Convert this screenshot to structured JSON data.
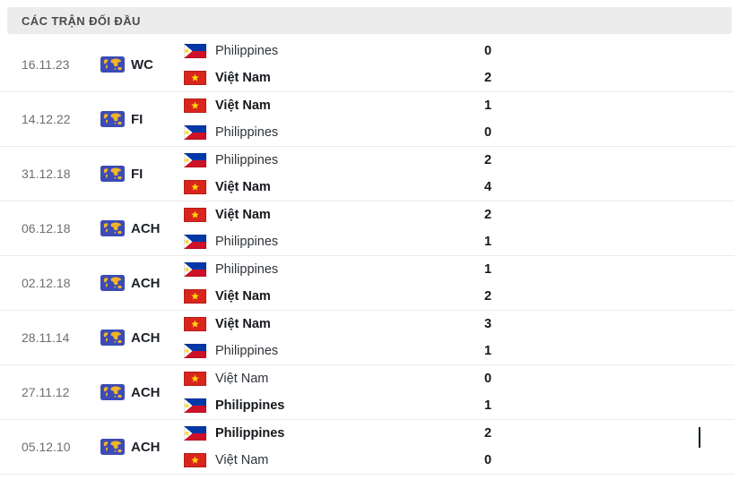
{
  "header": {
    "title": "CÁC TRẬN ĐỐI ĐẦU"
  },
  "colors": {
    "comp_icon_blue": "#3c4bb5",
    "comp_icon_yellow": "#f0b429",
    "vn_red": "#da251d",
    "vn_star": "#ffde00",
    "ph_blue": "#0038a8",
    "ph_red": "#ce1126",
    "ph_sun": "#fcd116"
  },
  "matches": [
    {
      "date": "16.11.23",
      "competition": "WC",
      "team1": {
        "name": "Philippines",
        "flag": "philippines",
        "score": "0",
        "winner": false
      },
      "team2": {
        "name": "Việt Nam",
        "flag": "vietnam",
        "score": "2",
        "winner": true
      }
    },
    {
      "date": "14.12.22",
      "competition": "FI",
      "team1": {
        "name": "Việt Nam",
        "flag": "vietnam",
        "score": "1",
        "winner": true
      },
      "team2": {
        "name": "Philippines",
        "flag": "philippines",
        "score": "0",
        "winner": false
      }
    },
    {
      "date": "31.12.18",
      "competition": "FI",
      "team1": {
        "name": "Philippines",
        "flag": "philippines",
        "score": "2",
        "winner": false
      },
      "team2": {
        "name": "Việt Nam",
        "flag": "vietnam",
        "score": "4",
        "winner": true
      }
    },
    {
      "date": "06.12.18",
      "competition": "ACH",
      "team1": {
        "name": "Việt Nam",
        "flag": "vietnam",
        "score": "2",
        "winner": true
      },
      "team2": {
        "name": "Philippines",
        "flag": "philippines",
        "score": "1",
        "winner": false
      }
    },
    {
      "date": "02.12.18",
      "competition": "ACH",
      "team1": {
        "name": "Philippines",
        "flag": "philippines",
        "score": "1",
        "winner": false
      },
      "team2": {
        "name": "Việt Nam",
        "flag": "vietnam",
        "score": "2",
        "winner": true
      }
    },
    {
      "date": "28.11.14",
      "competition": "ACH",
      "team1": {
        "name": "Việt Nam",
        "flag": "vietnam",
        "score": "3",
        "winner": true
      },
      "team2": {
        "name": "Philippines",
        "flag": "philippines",
        "score": "1",
        "winner": false
      }
    },
    {
      "date": "27.11.12",
      "competition": "ACH",
      "team1": {
        "name": "Việt Nam",
        "flag": "vietnam",
        "score": "0",
        "winner": false
      },
      "team2": {
        "name": "Philippines",
        "flag": "philippines",
        "score": "1",
        "winner": true
      }
    },
    {
      "date": "05.12.10",
      "competition": "ACH",
      "team1": {
        "name": "Philippines",
        "flag": "philippines",
        "score": "2",
        "winner": true
      },
      "team2": {
        "name": "Việt Nam",
        "flag": "vietnam",
        "score": "0",
        "winner": false
      }
    }
  ]
}
